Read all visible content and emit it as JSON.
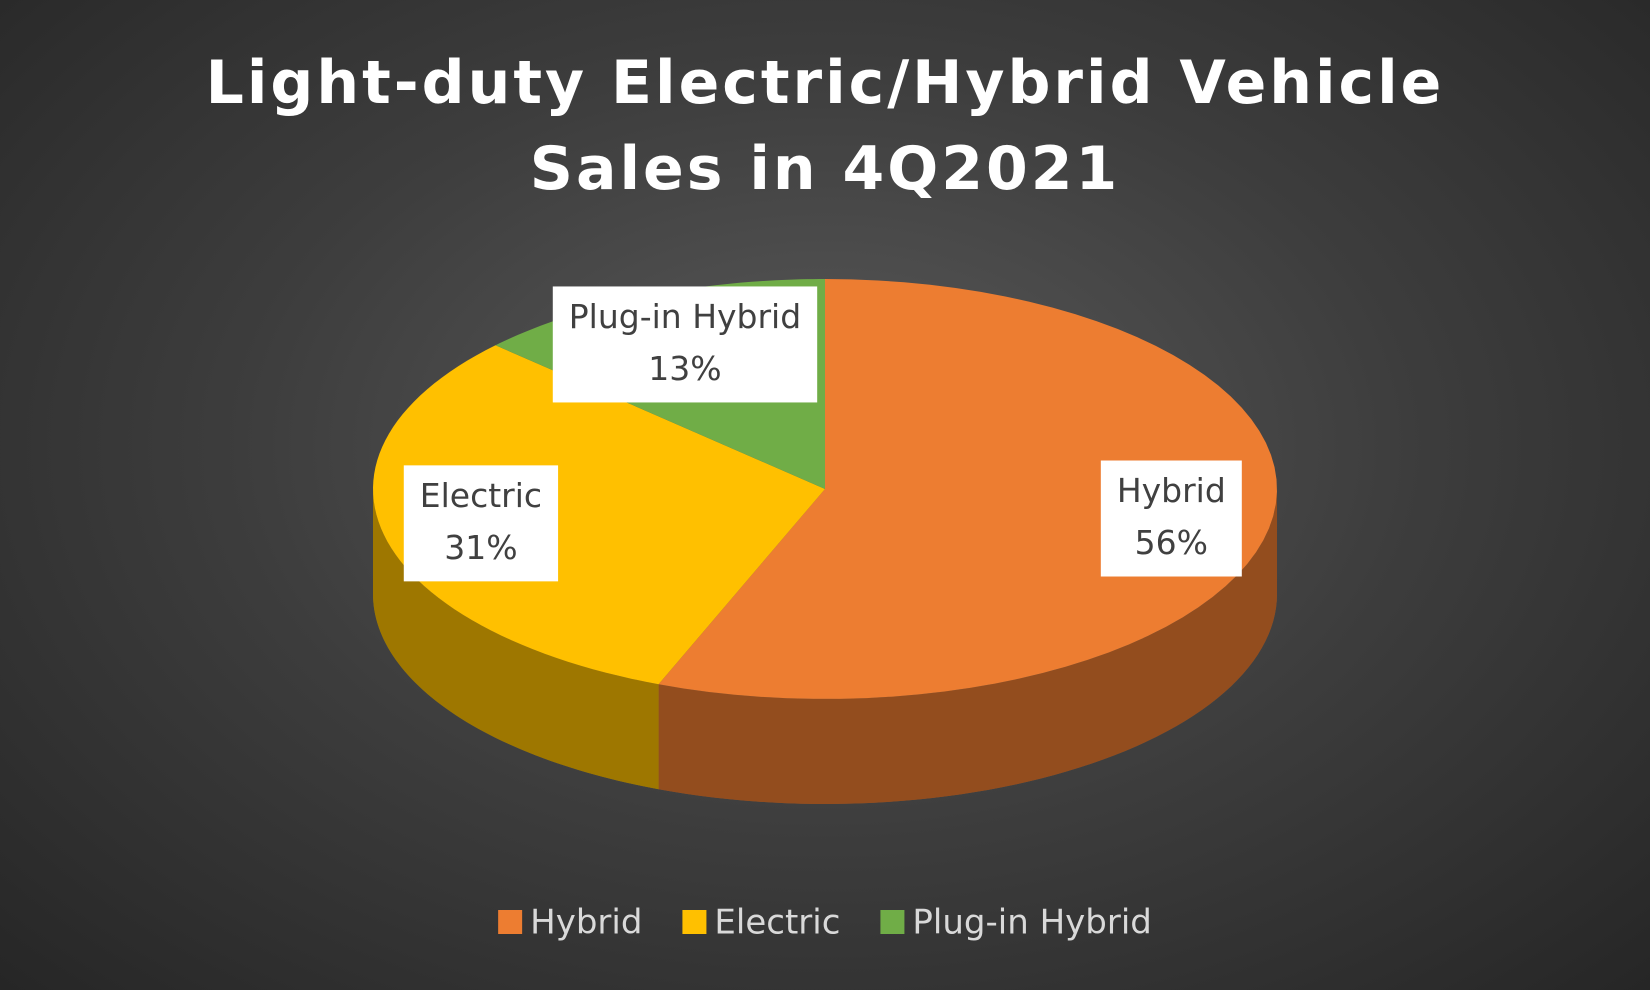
{
  "chart_data": {
    "type": "pie3d",
    "title": "Light-duty Electric/Hybrid Vehicle Sales in 4Q2021",
    "categories": [
      "Hybrid",
      "Electric",
      "Plug-in Hybrid"
    ],
    "values": [
      56,
      31,
      13
    ],
    "value_labels": [
      "56%",
      "31%",
      "13%"
    ],
    "colors": [
      "#ed7d31",
      "#ffc000",
      "#70ad47"
    ],
    "legend": "bottom"
  }
}
